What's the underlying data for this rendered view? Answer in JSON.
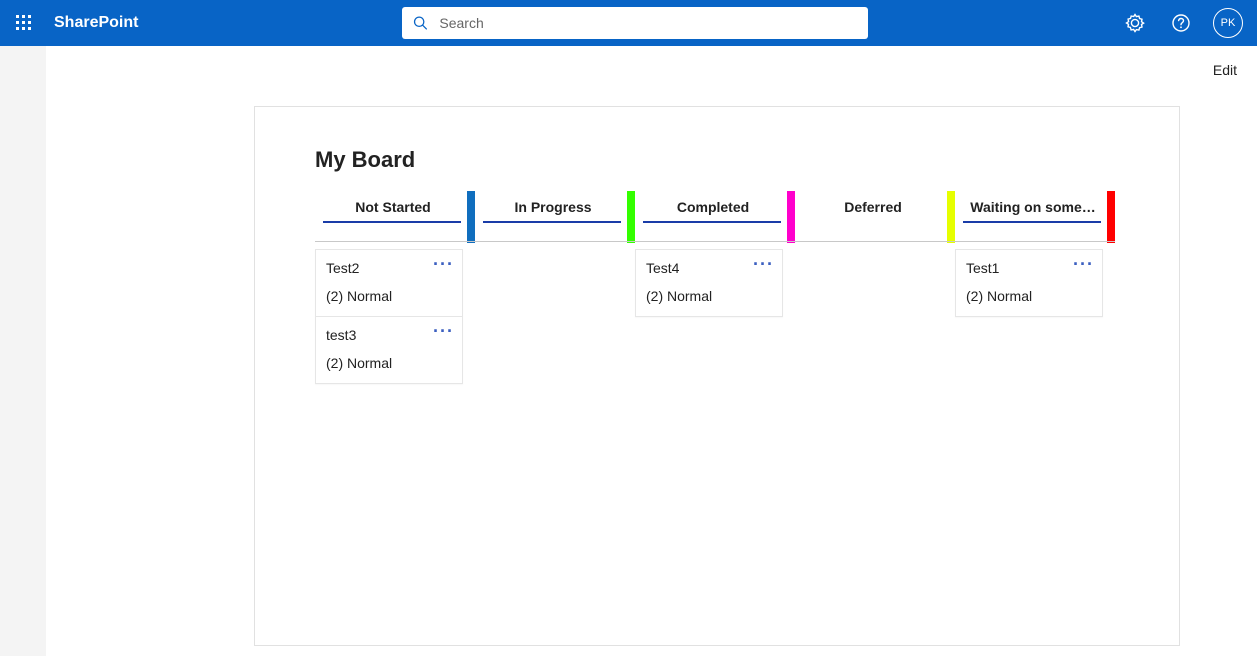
{
  "header": {
    "brand": "SharePoint",
    "search_placeholder": "Search",
    "avatar_initials": "PK",
    "colors": {
      "bg": "#0864c6",
      "text": "#ffffff"
    }
  },
  "page": {
    "edit_label": "Edit"
  },
  "board": {
    "title": "My Board",
    "underline_color": "#1a3ca8",
    "columns": [
      {
        "label": "Not Started",
        "stripe_color": "#106ebe",
        "underline": true,
        "cards": [
          {
            "title": "Test2",
            "meta": "(2) Normal"
          },
          {
            "title": "test3",
            "meta": "(2) Normal"
          }
        ]
      },
      {
        "label": "In Progress",
        "stripe_color": "#33ff00",
        "underline": true,
        "cards": []
      },
      {
        "label": "Completed",
        "stripe_color": "#ff00cc",
        "underline": true,
        "cards": [
          {
            "title": "Test4",
            "meta": "(2) Normal"
          }
        ]
      },
      {
        "label": "Deferred",
        "stripe_color": "#e6ff00",
        "underline": false,
        "cards": []
      },
      {
        "label": "Waiting on some…",
        "stripe_color": "#ff0000",
        "underline": true,
        "cards": [
          {
            "title": "Test1",
            "meta": "(2) Normal"
          }
        ]
      }
    ]
  }
}
